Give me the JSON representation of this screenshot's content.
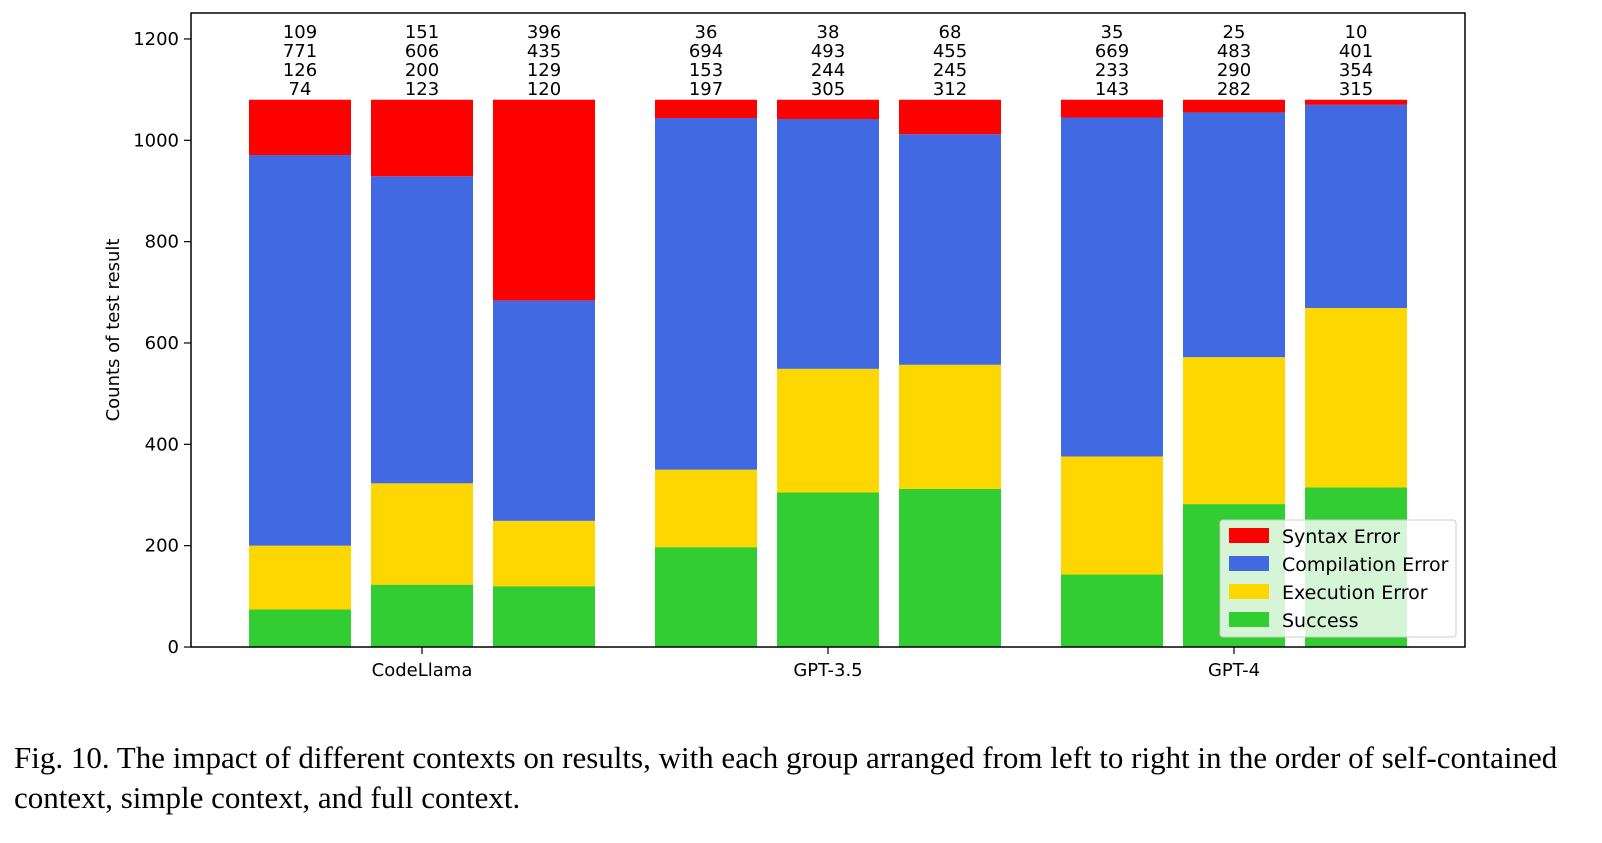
{
  "chart_data": {
    "type": "bar",
    "stacked": true,
    "categories": [
      "CodeLlama",
      "GPT-3.5",
      "GPT-4"
    ],
    "bars_per_group": 3,
    "series": [
      {
        "name": "Success",
        "color": "#32cd32",
        "values": [
          [
            74,
            123,
            120
          ],
          [
            197,
            305,
            312
          ],
          [
            143,
            282,
            315
          ]
        ]
      },
      {
        "name": "Execution Error",
        "color": "#ffd700",
        "values": [
          [
            126,
            200,
            129
          ],
          [
            153,
            244,
            245
          ],
          [
            233,
            290,
            354
          ]
        ]
      },
      {
        "name": "Compilation Error",
        "color": "#4169e1",
        "values": [
          [
            771,
            606,
            435
          ],
          [
            694,
            493,
            455
          ],
          [
            669,
            483,
            401
          ]
        ]
      },
      {
        "name": "Syntax Error",
        "color": "#ff0000",
        "values": [
          [
            109,
            151,
            396
          ],
          [
            36,
            38,
            68
          ],
          [
            35,
            25,
            10
          ]
        ]
      }
    ],
    "ylabel": "Counts of test result",
    "xlabel": "",
    "ylim": [
      0,
      1250
    ],
    "yticks": [
      0,
      200,
      400,
      600,
      800,
      1000,
      1200
    ],
    "grid": false,
    "legend_position": "bottom-right",
    "legend_order": [
      "Syntax Error",
      "Compilation Error",
      "Execution Error",
      "Success"
    ]
  },
  "caption": {
    "text": "Fig. 10.  The impact of different contexts on results, with each group arranged from left to right in the order of self-contained context, simple context, and full context."
  }
}
